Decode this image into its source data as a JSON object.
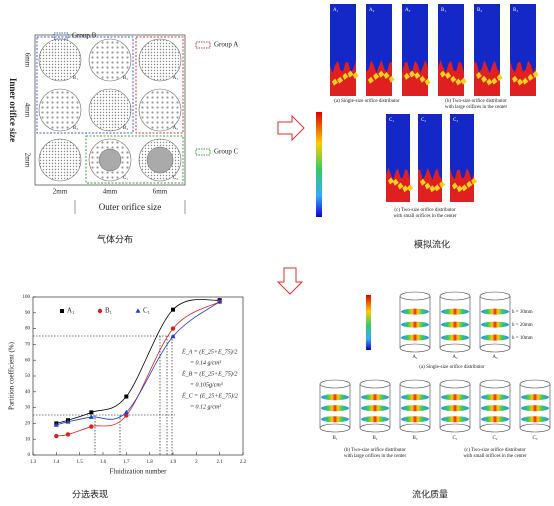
{
  "gas_distribution": {
    "group_labels": [
      "Group B",
      "Group A",
      "Group C"
    ],
    "y_axis_label": "Inner orifice size",
    "y_labels": [
      "6mm",
      "4mm",
      "2mm"
    ],
    "x_labels": [
      "2mm",
      "4mm",
      "6mm"
    ],
    "x_axis_label": "Outer orifice size",
    "cells": [
      [
        "B₁",
        "B₂",
        "A₁"
      ],
      [
        "B₃",
        "B₄",
        "A₂"
      ],
      [
        null,
        "C₁",
        "C₂"
      ]
    ],
    "caption": "气体分布"
  },
  "simulation": {
    "top_panels": [
      "A₁",
      "A₂",
      "A₃",
      "B₁",
      "B₂",
      "B₃"
    ],
    "bottom_panels": [
      "C₁",
      "C₂",
      "C₃"
    ],
    "caption_a": [
      "(a) Single-size orifice distributor"
    ],
    "caption_b": [
      "(b) Two-size orifice distributor",
      "with large orifices in the center"
    ],
    "caption_c": [
      "(c) Two-size orifice distributor",
      "with small orifices in the center"
    ],
    "caption": "模拟流化"
  },
  "chart_data": {
    "type": "scatter",
    "x_label": "Fluidization number",
    "y_label": "Partition coefficient (%)",
    "caption": "分选表现",
    "xlim": [
      1.3,
      2.2
    ],
    "xticks": [
      1.3,
      1.4,
      1.5,
      1.6,
      1.7,
      1.8,
      1.9,
      2.0,
      2.1,
      2.2
    ],
    "ylim": [
      0,
      100
    ],
    "yticks": [
      0,
      10,
      20,
      30,
      40,
      50,
      60,
      70,
      80,
      90,
      100
    ],
    "series": [
      {
        "name": "A₁",
        "color": "#000000",
        "marker": "square",
        "x": [
          1.4,
          1.45,
          1.55,
          1.7,
          1.9,
          2.1
        ],
        "values": [
          20,
          22,
          27,
          37,
          92,
          98
        ]
      },
      {
        "name": "B₁",
        "color": "#e0201b",
        "marker": "circle",
        "x": [
          1.4,
          1.45,
          1.55,
          1.7,
          1.9,
          2.1
        ],
        "values": [
          12,
          13,
          18,
          25,
          80,
          97
        ]
      },
      {
        "name": "C₁",
        "color": "#1f3fd0",
        "marker": "triangle",
        "x": [
          1.4,
          1.45,
          1.55,
          1.7,
          1.9,
          2.1
        ],
        "values": [
          19,
          21,
          24,
          27,
          75,
          97
        ]
      }
    ],
    "annotations": [
      "Ē_A = (E_25+E_75)/2",
      "= 0.14 g/cm³",
      "Ē_B = (E_25+E_75)/2",
      "= 0.105g/cm³",
      "Ē_C = (E_25+E_75)/2",
      "= 0.12 g/cm³"
    ]
  },
  "flow_quality": {
    "top_labels": [
      "A₁",
      "A₂",
      "A₃"
    ],
    "heights": [
      "h = 30mm",
      "h = 20mm",
      "h = 10mm"
    ],
    "caption_a": [
      "(a) Single-size orifice distributor"
    ],
    "bottom_labels": [
      "B₁",
      "B₂",
      "B₃",
      "C₁",
      "C₂",
      "C₃"
    ],
    "caption_b": [
      "(b) Two-size orifice distributor",
      "with large orifices in the center"
    ],
    "caption_c": [
      "(c) Two-size orifice distributor",
      "with small orifices in the center"
    ],
    "caption": "流化质量"
  }
}
